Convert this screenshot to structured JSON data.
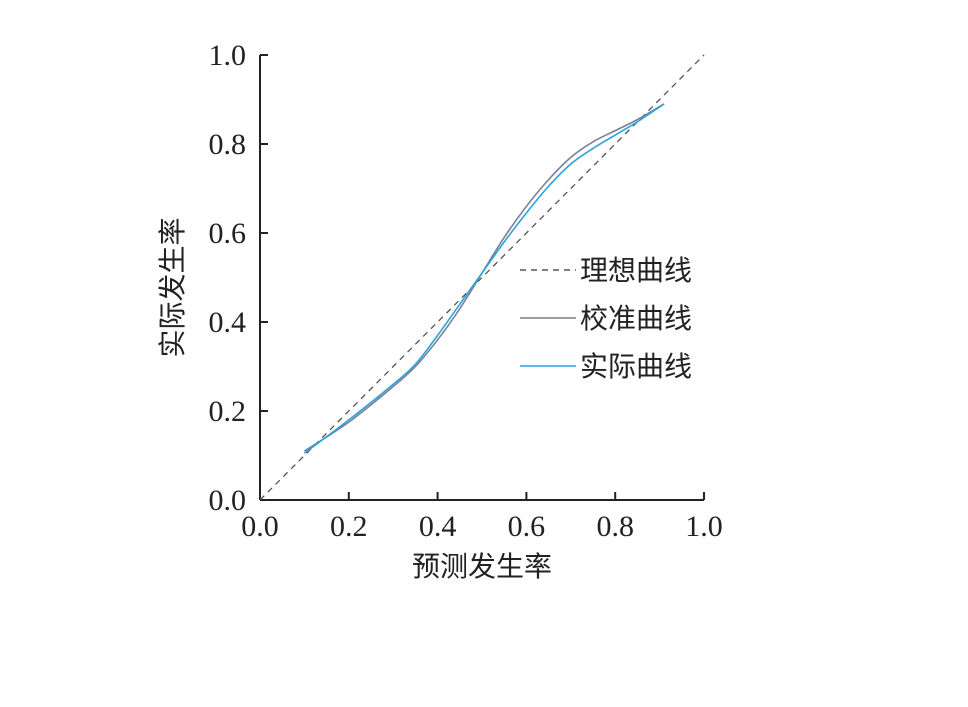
{
  "chart_data": {
    "type": "line",
    "xlabel": "预测发生率",
    "ylabel": "实际发生率",
    "xlim": [
      0.0,
      1.0
    ],
    "ylim": [
      0.0,
      1.0
    ],
    "xticks": [
      "0.0",
      "0.2",
      "0.4",
      "0.6",
      "0.8",
      "1.0"
    ],
    "yticks": [
      "0.0",
      "0.2",
      "0.4",
      "0.6",
      "0.8",
      "1.0"
    ],
    "grid": false,
    "legend_position": "center-right",
    "series": [
      {
        "name": "理想曲线",
        "style": "dashed",
        "color": "#555555",
        "x": [
          0.0,
          1.0
        ],
        "y": [
          0.0,
          1.0
        ]
      },
      {
        "name": "校准曲线",
        "style": "solid",
        "color": "#7b7f96",
        "x": [
          0.1,
          0.2,
          0.3,
          0.35,
          0.4,
          0.45,
          0.5,
          0.55,
          0.6,
          0.65,
          0.7,
          0.75,
          0.8,
          0.85,
          0.91
        ],
        "y": [
          0.11,
          0.175,
          0.255,
          0.3,
          0.36,
          0.43,
          0.51,
          0.59,
          0.66,
          0.72,
          0.77,
          0.805,
          0.83,
          0.855,
          0.89
        ]
      },
      {
        "name": "实际曲线",
        "style": "solid",
        "color": "#29a3dd",
        "x": [
          0.1,
          0.2,
          0.3,
          0.35,
          0.4,
          0.45,
          0.5,
          0.55,
          0.6,
          0.65,
          0.7,
          0.75,
          0.8,
          0.85,
          0.91
        ],
        "y": [
          0.105,
          0.18,
          0.26,
          0.305,
          0.37,
          0.44,
          0.51,
          0.58,
          0.645,
          0.705,
          0.755,
          0.79,
          0.82,
          0.85,
          0.89
        ]
      }
    ]
  }
}
